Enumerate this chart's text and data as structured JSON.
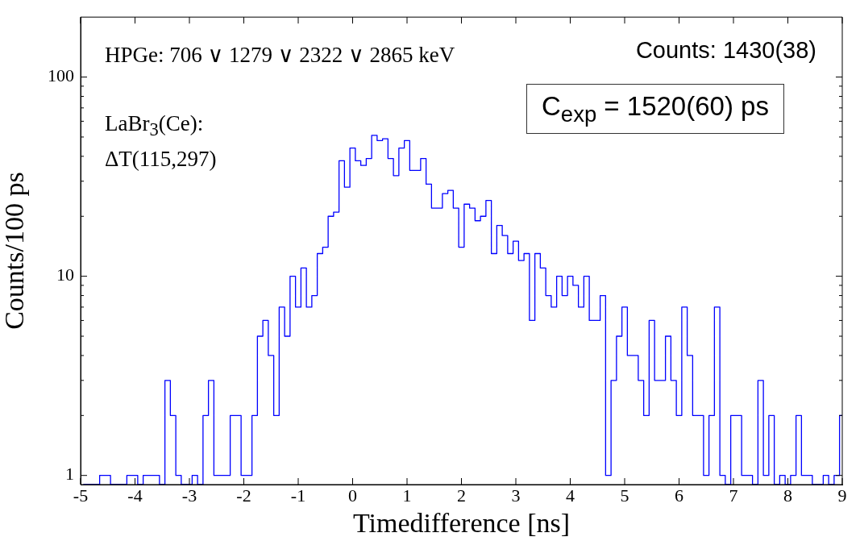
{
  "chart_data": {
    "type": "histogram",
    "xlabel": "Timedifference [ns]",
    "ylabel": "Counts/100 ps",
    "color": "#0000ff",
    "log": true,
    "grid": false,
    "xlim": [
      -5,
      9
    ],
    "xticks": [
      -5,
      -4,
      -3,
      -2,
      -1,
      0,
      1,
      2,
      3,
      4,
      5,
      6,
      7,
      8,
      9
    ],
    "ylim": [
      0.9,
      200
    ],
    "yticks": [
      1,
      {
        "value": 2,
        "label": null
      },
      {
        "value": 3,
        "label": null
      },
      {
        "value": 4,
        "label": null
      },
      {
        "value": 5,
        "label": null
      },
      {
        "value": 6,
        "label": null
      },
      {
        "value": 7,
        "label": null
      },
      {
        "value": 8,
        "label": null
      },
      {
        "value": 9,
        "label": null
      },
      10,
      {
        "value": 20,
        "label": null
      },
      {
        "value": 30,
        "label": null
      },
      {
        "value": 40,
        "label": null
      },
      {
        "value": 50,
        "label": null
      },
      {
        "value": 60,
        "label": null
      },
      {
        "value": 70,
        "label": null
      },
      {
        "value": 80,
        "label": null
      },
      {
        "value": 90,
        "label": null
      },
      100
    ],
    "bins": [
      -4.95,
      -4.85,
      -4.75,
      -4.65,
      -4.55,
      -4.45,
      -4.35,
      -4.25,
      -4.15,
      -4.05,
      -3.95,
      -3.85,
      -3.75,
      -3.65,
      -3.55,
      -3.45,
      -3.35,
      -3.25,
      -3.15,
      -3.05,
      -2.95,
      -2.85,
      -2.75,
      -2.65,
      -2.55,
      -2.45,
      -2.35,
      -2.25,
      -2.15,
      -2.05,
      -1.95,
      -1.85,
      -1.75,
      -1.65,
      -1.55,
      -1.45,
      -1.35,
      -1.25,
      -1.15,
      -1.05,
      -0.95,
      -0.85,
      -0.75,
      -0.65,
      -0.55,
      -0.45,
      -0.35,
      -0.25,
      -0.15,
      -0.05,
      0.05,
      0.15,
      0.25,
      0.35,
      0.45,
      0.55,
      0.65,
      0.75,
      0.85,
      0.95,
      1.05,
      1.15,
      1.25,
      1.35,
      1.45,
      1.55,
      1.65,
      1.75,
      1.85,
      1.95,
      2.05,
      2.15,
      2.25,
      2.35,
      2.45,
      2.55,
      2.65,
      2.75,
      2.85,
      2.95,
      3.05,
      3.15,
      3.25,
      3.35,
      3.45,
      3.55,
      3.65,
      3.75,
      3.85,
      3.95,
      4.05,
      4.15,
      4.25,
      4.35,
      4.45,
      4.55,
      4.65,
      4.75,
      4.85,
      4.95,
      5.05,
      5.15,
      5.25,
      5.35,
      5.45,
      5.55,
      5.65,
      5.75,
      5.85,
      5.95,
      6.05,
      6.15,
      6.25,
      6.35,
      6.45,
      6.55,
      6.65,
      6.75,
      6.85,
      6.95,
      7.05,
      7.15,
      7.25,
      7.35,
      7.45,
      7.55,
      7.65,
      7.75,
      7.85,
      7.95,
      8.05,
      8.15,
      8.25,
      8.35,
      8.45,
      8.55,
      8.65,
      8.75,
      8.85,
      8.95,
      9.05
    ],
    "values": [
      null,
      null,
      null,
      1,
      1,
      null,
      null,
      null,
      1,
      1,
      null,
      1,
      1,
      1,
      null,
      3,
      2,
      1,
      null,
      null,
      1,
      null,
      2,
      3,
      1,
      1,
      1,
      2,
      2,
      1,
      1,
      2,
      5,
      6,
      4,
      2,
      7,
      5,
      10,
      7,
      11,
      7,
      8,
      13,
      14,
      20,
      21,
      38,
      28,
      44,
      38,
      36,
      39,
      51,
      48,
      49,
      39,
      32,
      44,
      48,
      34,
      34,
      39,
      29,
      22,
      22,
      26,
      27,
      22,
      14,
      23,
      22,
      19,
      20,
      24,
      13,
      18,
      16,
      13,
      15,
      12,
      13,
      6,
      13,
      11,
      8,
      7,
      10,
      8,
      10,
      9,
      7,
      10,
      6,
      6,
      8,
      1,
      3,
      5,
      7,
      4,
      4,
      3,
      2,
      6,
      3,
      3,
      5,
      3,
      2,
      7,
      4,
      2,
      2,
      1,
      2,
      7,
      1,
      null,
      2,
      2,
      1,
      1,
      null,
      3,
      1,
      2,
      null,
      1,
      null,
      1,
      2,
      1,
      1,
      null,
      null,
      1,
      null,
      1,
      2
    ],
    "annotations": [
      "HPGe: 706 ∨ 1279 ∨ 2322 ∨ 2865 keV",
      "LaBr$_{3}$(Ce):",
      "ΔT(115,297)",
      "Counts: 1430(38)",
      "C$_{exp}$ = 1520(60) ps"
    ]
  }
}
